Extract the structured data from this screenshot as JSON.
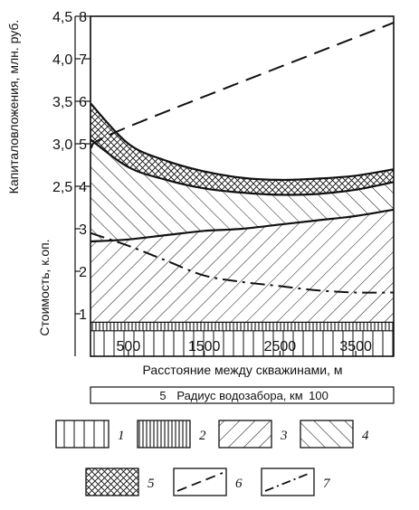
{
  "chart_data": {
    "type": "area",
    "title": "",
    "axes": {
      "left_outer_label": "Капиталовложения, млн. руб.",
      "left_outer_ticks": [
        "2,5",
        "3,0",
        "3,5",
        "4,0",
        "4,5"
      ],
      "left_inner_label": "Стоимость, к.оп.",
      "left_inner_ticks": [
        "1",
        "2",
        "3",
        "4",
        "5",
        "6",
        "7",
        "8"
      ],
      "x_label": "Расстояние между скважинами, м",
      "x_ticks": [
        "500",
        "1500",
        "2500",
        "3500"
      ],
      "x_range": [
        0,
        4000
      ],
      "y_range": [
        0,
        8
      ],
      "secondary_x_label": "Радиус водозабора, км",
      "secondary_x_ticks": [
        "5",
        "100"
      ]
    },
    "x": [
      0,
      500,
      1000,
      1500,
      2000,
      2500,
      3000,
      3500,
      4000
    ],
    "layers": [
      {
        "legend_id": "1",
        "pattern": "vertical",
        "upper": [
          0.6,
          0.6,
          0.6,
          0.6,
          0.6,
          0.6,
          0.6,
          0.6,
          0.6
        ]
      },
      {
        "legend_id": "2",
        "pattern": "dense-vertical",
        "upper": [
          0.8,
          0.8,
          0.8,
          0.8,
          0.8,
          0.8,
          0.8,
          0.8,
          0.8
        ]
      },
      {
        "legend_id": "3",
        "pattern": "backslash",
        "upper": [
          2.7,
          2.75,
          2.85,
          2.95,
          3.0,
          3.1,
          3.2,
          3.3,
          3.45
        ]
      },
      {
        "legend_id": "4",
        "pattern": "slash",
        "upper": [
          5.1,
          4.45,
          4.15,
          3.95,
          3.85,
          3.8,
          3.82,
          3.92,
          4.1
        ]
      },
      {
        "legend_id": "5",
        "pattern": "crosshatch",
        "upper": [
          5.95,
          5.0,
          4.6,
          4.35,
          4.2,
          4.15,
          4.18,
          4.25,
          4.4
        ]
      }
    ],
    "lines": [
      {
        "legend_id": "6",
        "style": "dashed",
        "x": [
          0,
          500,
          4000
        ],
        "y": [
          4.9,
          5.4,
          7.85
        ]
      },
      {
        "legend_id": "7",
        "style": "dash-dot",
        "x": [
          0,
          500,
          1000,
          1500,
          2000,
          2500,
          3000,
          3500,
          4000
        ],
        "y": [
          2.9,
          2.6,
          2.25,
          1.9,
          1.75,
          1.65,
          1.55,
          1.5,
          1.5
        ]
      }
    ],
    "legend": {
      "placement": "bottom",
      "items": [
        {
          "id": "1",
          "label": "1",
          "kind": "pattern",
          "pattern": "vertical"
        },
        {
          "id": "2",
          "label": "2",
          "kind": "pattern",
          "pattern": "dense-vertical"
        },
        {
          "id": "3",
          "label": "3",
          "kind": "pattern",
          "pattern": "backslash"
        },
        {
          "id": "4",
          "label": "4",
          "kind": "pattern",
          "pattern": "slash"
        },
        {
          "id": "5",
          "label": "5",
          "kind": "pattern",
          "pattern": "crosshatch"
        },
        {
          "id": "6",
          "label": "6",
          "kind": "line",
          "style": "dashed"
        },
        {
          "id": "7",
          "label": "7",
          "kind": "line",
          "style": "dash-dot"
        }
      ]
    },
    "grid": false,
    "colors": {
      "ink": "#111111",
      "background": "#ffffff"
    }
  }
}
